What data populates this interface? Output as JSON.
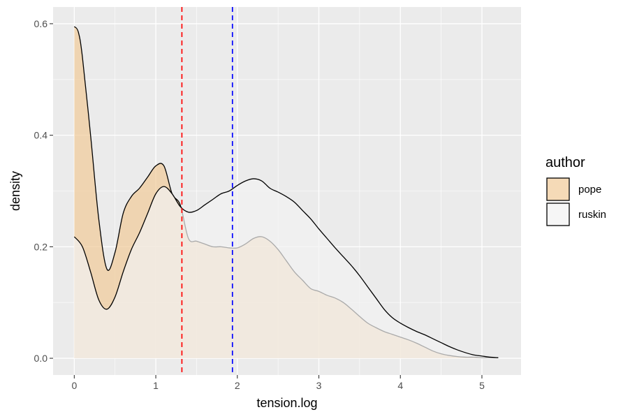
{
  "chart_data": {
    "type": "area",
    "title": "",
    "xlabel": "tension.log",
    "ylabel": "density",
    "xlim": [
      -0.26,
      5.48
    ],
    "ylim": [
      -0.03,
      0.63
    ],
    "x_ticks": [
      0,
      1,
      2,
      3,
      4,
      5
    ],
    "y_ticks": [
      0.0,
      0.2,
      0.4,
      0.6
    ],
    "x_tick_labels": [
      "0",
      "1",
      "2",
      "3",
      "4",
      "5"
    ],
    "y_tick_labels": [
      "0.0",
      "0.2",
      "0.4",
      "0.6"
    ],
    "grid": true,
    "background": "#ebebeb",
    "legend": {
      "title": "author",
      "position": "right",
      "entries": [
        "pope",
        "ruskin"
      ]
    },
    "series": [
      {
        "name": "pope",
        "color": "#f1cb98",
        "line_color": "#000000",
        "x": [
          0.0,
          0.05,
          0.1,
          0.2,
          0.3,
          0.4,
          0.5,
          0.6,
          0.7,
          0.8,
          0.9,
          1.0,
          1.1,
          1.2,
          1.3,
          1.4,
          1.5,
          1.6,
          1.7,
          1.8,
          1.9,
          2.0,
          2.1,
          2.2,
          2.3,
          2.4,
          2.5,
          2.6,
          2.7,
          2.8,
          2.9,
          3.0,
          3.1,
          3.2,
          3.3,
          3.4,
          3.5,
          3.6,
          3.7,
          3.8,
          3.9,
          4.0,
          4.1,
          4.2,
          4.3,
          4.4,
          4.5,
          4.6,
          4.7,
          4.8,
          4.9,
          5.0,
          5.1,
          5.2
        ],
        "values": [
          0.595,
          0.585,
          0.54,
          0.4,
          0.25,
          0.16,
          0.19,
          0.26,
          0.29,
          0.305,
          0.325,
          0.345,
          0.345,
          0.295,
          0.275,
          0.215,
          0.21,
          0.205,
          0.2,
          0.2,
          0.198,
          0.198,
          0.205,
          0.215,
          0.218,
          0.21,
          0.195,
          0.175,
          0.155,
          0.14,
          0.125,
          0.12,
          0.113,
          0.108,
          0.1,
          0.088,
          0.075,
          0.063,
          0.055,
          0.048,
          0.043,
          0.038,
          0.033,
          0.027,
          0.02,
          0.013,
          0.008,
          0.005,
          0.003,
          0.002,
          0.002,
          0.001,
          0.001,
          0.001
        ]
      },
      {
        "name": "ruskin",
        "color": "#f2f2f2",
        "line_color": "#000000",
        "x": [
          0.0,
          0.1,
          0.2,
          0.3,
          0.4,
          0.5,
          0.6,
          0.7,
          0.8,
          0.9,
          1.0,
          1.1,
          1.2,
          1.3,
          1.4,
          1.5,
          1.6,
          1.7,
          1.8,
          1.9,
          2.0,
          2.1,
          2.2,
          2.3,
          2.4,
          2.5,
          2.6,
          2.7,
          2.8,
          2.9,
          3.0,
          3.1,
          3.2,
          3.3,
          3.4,
          3.5,
          3.6,
          3.7,
          3.8,
          3.9,
          4.0,
          4.1,
          4.2,
          4.3,
          4.4,
          4.5,
          4.6,
          4.7,
          4.8,
          4.9,
          5.0,
          5.1,
          5.2
        ],
        "values": [
          0.218,
          0.2,
          0.155,
          0.105,
          0.088,
          0.11,
          0.155,
          0.195,
          0.225,
          0.26,
          0.295,
          0.308,
          0.295,
          0.272,
          0.262,
          0.265,
          0.275,
          0.285,
          0.295,
          0.3,
          0.31,
          0.318,
          0.322,
          0.318,
          0.305,
          0.298,
          0.29,
          0.28,
          0.265,
          0.25,
          0.232,
          0.215,
          0.198,
          0.182,
          0.166,
          0.148,
          0.128,
          0.108,
          0.088,
          0.073,
          0.063,
          0.055,
          0.048,
          0.042,
          0.035,
          0.028,
          0.021,
          0.015,
          0.01,
          0.006,
          0.004,
          0.002,
          0.001
        ]
      }
    ],
    "reference_lines": [
      {
        "axis": "x",
        "value": 1.32,
        "color": "#ff0000",
        "style": "dashed"
      },
      {
        "axis": "x",
        "value": 1.94,
        "color": "#0000ff",
        "style": "dashed"
      }
    ]
  }
}
